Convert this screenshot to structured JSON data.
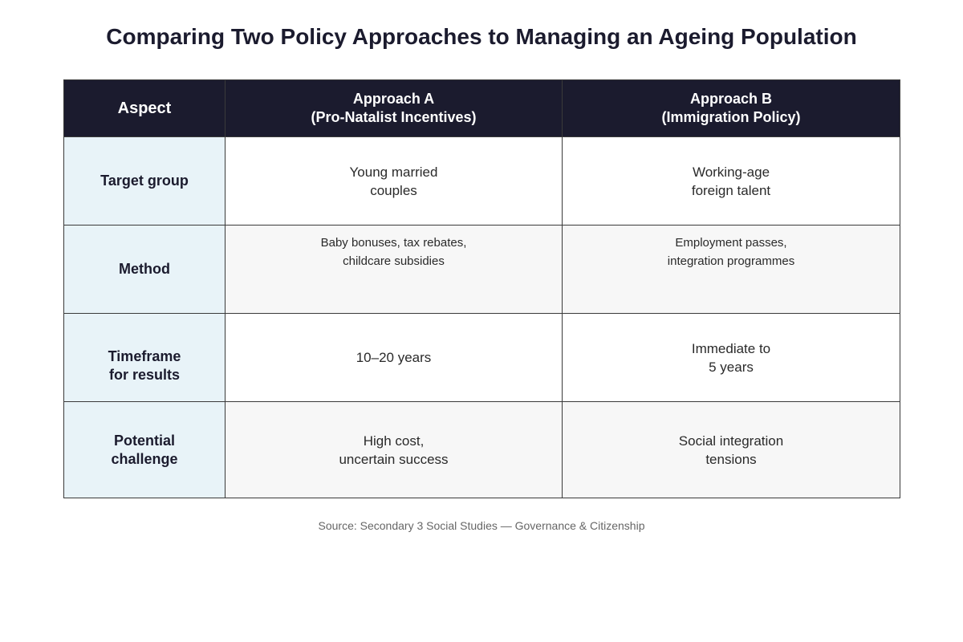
{
  "title": "Comparing Two Policy Approaches to Managing an Ageing Population",
  "table": {
    "headers": {
      "aspect": "Aspect",
      "approach_a": "Approach A\n(Pro-Natalist Incentives)",
      "approach_b": "Approach B\n(Immigration Policy)"
    },
    "rows": [
      {
        "aspect": "Target group",
        "approach_a": "Young married\ncouples",
        "approach_b": "Working-age\nforeign talent"
      },
      {
        "aspect": "Method",
        "approach_a": "Baby bonuses, tax rebates,\nchildcare subsidies",
        "approach_b": "Employment passes,\nintegration programmes"
      },
      {
        "aspect": "Timeframe\nfor results",
        "approach_a": "10–20 years",
        "approach_b": "Immediate to\n5 years"
      },
      {
        "aspect": "Potential\nchallenge",
        "approach_a": "High cost,\nuncertain success",
        "approach_b": "Social integration\ntensions"
      }
    ]
  },
  "source": "Source: Secondary 3 Social Studies — Governance & Citizenship",
  "colors": {
    "header_bg": "#1b1b2e",
    "aspect_bg": "#e8f3f8",
    "alt_row_bg": "#f7f7f7",
    "border": "#3a3a3a"
  }
}
